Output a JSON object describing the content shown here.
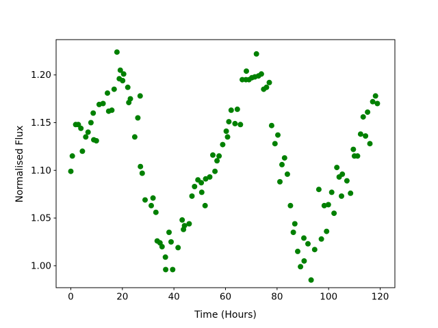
{
  "chart_data": {
    "type": "scatter",
    "title": "",
    "xlabel": "Time (Hours)",
    "ylabel": "Normalised Flux",
    "marker_color": "#008000",
    "marker_radius_px": 4,
    "grid": false,
    "legend": null,
    "xlim": [
      -5.7,
      125.7
    ],
    "ylim": [
      0.977,
      1.237
    ],
    "xticks": [
      0,
      20,
      40,
      60,
      80,
      100,
      120
    ],
    "yticks": [
      1.0,
      1.05,
      1.1,
      1.15,
      1.2
    ],
    "points": [
      [
        0.0,
        1.099
      ],
      [
        0.6,
        1.115
      ],
      [
        1.9,
        1.148
      ],
      [
        2.9,
        1.148
      ],
      [
        3.9,
        1.144
      ],
      [
        4.5,
        1.12
      ],
      [
        5.8,
        1.135
      ],
      [
        6.7,
        1.14
      ],
      [
        7.8,
        1.15
      ],
      [
        8.7,
        1.16
      ],
      [
        8.9,
        1.132
      ],
      [
        9.9,
        1.131
      ],
      [
        11.0,
        1.169
      ],
      [
        12.5,
        1.17
      ],
      [
        14.2,
        1.181
      ],
      [
        14.7,
        1.162
      ],
      [
        15.9,
        1.163
      ],
      [
        16.8,
        1.185
      ],
      [
        17.9,
        1.224
      ],
      [
        18.8,
        1.196
      ],
      [
        19.2,
        1.205
      ],
      [
        20.1,
        1.194
      ],
      [
        20.5,
        1.201
      ],
      [
        22.1,
        1.187
      ],
      [
        22.5,
        1.171
      ],
      [
        23.1,
        1.175
      ],
      [
        24.8,
        1.135
      ],
      [
        26.0,
        1.155
      ],
      [
        26.9,
        1.178
      ],
      [
        27.0,
        1.104
      ],
      [
        27.7,
        1.097
      ],
      [
        28.8,
        1.069
      ],
      [
        31.2,
        1.063
      ],
      [
        31.9,
        1.071
      ],
      [
        33.0,
        1.056
      ],
      [
        33.5,
        1.026
      ],
      [
        34.6,
        1.024
      ],
      [
        35.4,
        1.02
      ],
      [
        36.7,
        1.009
      ],
      [
        36.8,
        0.996
      ],
      [
        38.1,
        1.035
      ],
      [
        38.9,
        1.025
      ],
      [
        39.5,
        0.996
      ],
      [
        41.6,
        1.019
      ],
      [
        43.2,
        1.048
      ],
      [
        43.7,
        1.038
      ],
      [
        44.1,
        1.042
      ],
      [
        45.9,
        1.044
      ],
      [
        47.0,
        1.073
      ],
      [
        48.0,
        1.083
      ],
      [
        49.3,
        1.09
      ],
      [
        50.6,
        1.087
      ],
      [
        50.8,
        1.077
      ],
      [
        52.1,
        1.063
      ],
      [
        52.3,
        1.091
      ],
      [
        53.9,
        1.093
      ],
      [
        55.1,
        1.116
      ],
      [
        55.9,
        1.099
      ],
      [
        56.7,
        1.11
      ],
      [
        57.5,
        1.115
      ],
      [
        58.9,
        1.127
      ],
      [
        60.3,
        1.141
      ],
      [
        60.8,
        1.135
      ],
      [
        61.3,
        1.151
      ],
      [
        62.2,
        1.163
      ],
      [
        63.7,
        1.149
      ],
      [
        64.6,
        1.164
      ],
      [
        65.8,
        1.148
      ],
      [
        66.5,
        1.195
      ],
      [
        67.9,
        1.195
      ],
      [
        68.1,
        1.204
      ],
      [
        69.1,
        1.195
      ],
      [
        70.2,
        1.197
      ],
      [
        71.4,
        1.198
      ],
      [
        72.0,
        1.222
      ],
      [
        72.8,
        1.199
      ],
      [
        73.9,
        1.201
      ],
      [
        74.8,
        1.185
      ],
      [
        75.9,
        1.187
      ],
      [
        77.0,
        1.192
      ],
      [
        77.9,
        1.147
      ],
      [
        79.2,
        1.128
      ],
      [
        80.3,
        1.137
      ],
      [
        81.1,
        1.088
      ],
      [
        81.9,
        1.106
      ],
      [
        82.9,
        1.113
      ],
      [
        84.0,
        1.096
      ],
      [
        85.2,
        1.063
      ],
      [
        86.3,
        1.035
      ],
      [
        86.9,
        1.044
      ],
      [
        88.0,
        1.015
      ],
      [
        89.1,
        0.999
      ],
      [
        90.4,
        1.029
      ],
      [
        90.5,
        1.005
      ],
      [
        92.0,
        1.023
      ],
      [
        93.2,
        0.985
      ],
      [
        94.6,
        1.017
      ],
      [
        96.2,
        1.08
      ],
      [
        97.2,
        1.028
      ],
      [
        98.3,
        1.063
      ],
      [
        99.2,
        1.036
      ],
      [
        99.9,
        1.064
      ],
      [
        101.2,
        1.077
      ],
      [
        102.1,
        1.055
      ],
      [
        103.2,
        1.103
      ],
      [
        104.1,
        1.093
      ],
      [
        105.0,
        1.073
      ],
      [
        105.3,
        1.096
      ],
      [
        107.1,
        1.089
      ],
      [
        108.5,
        1.076
      ],
      [
        109.6,
        1.122
      ],
      [
        110.0,
        1.115
      ],
      [
        111.2,
        1.115
      ],
      [
        112.4,
        1.138
      ],
      [
        113.4,
        1.156
      ],
      [
        114.3,
        1.136
      ],
      [
        115.1,
        1.161
      ],
      [
        116.0,
        1.128
      ],
      [
        117.1,
        1.172
      ],
      [
        118.2,
        1.178
      ],
      [
        118.9,
        1.17
      ]
    ]
  }
}
